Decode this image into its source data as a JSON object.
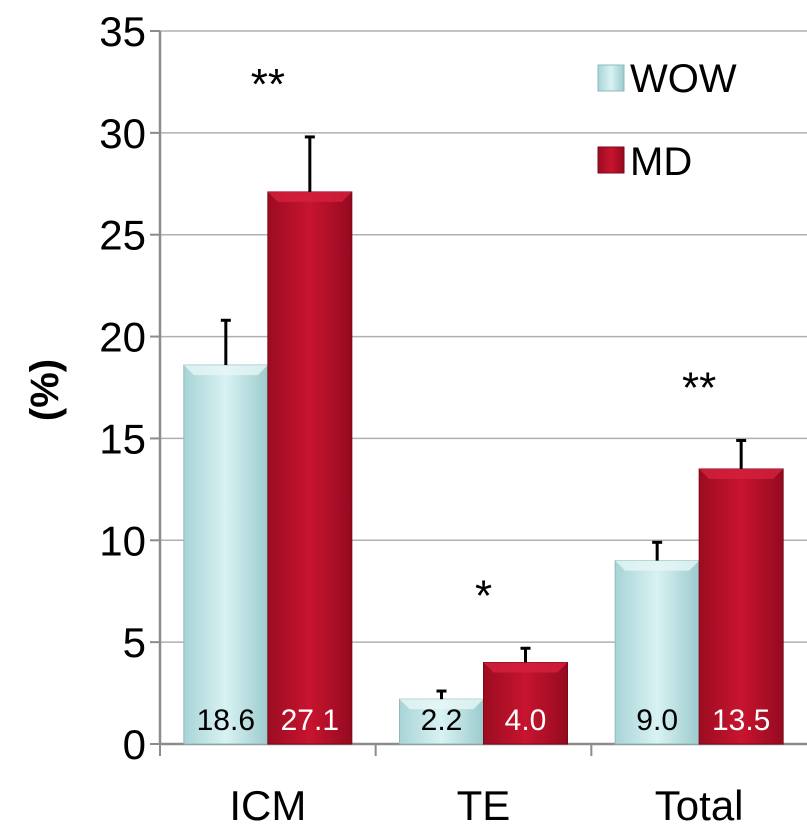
{
  "chart_data": {
    "type": "bar",
    "title": "",
    "xlabel": "",
    "ylabel": "(%)",
    "ylim": [
      0,
      35
    ],
    "yticks": [
      0,
      5,
      10,
      15,
      20,
      25,
      30,
      35
    ],
    "grid": true,
    "legend_position": "top-right",
    "categories": [
      "ICM",
      "TE",
      "Total"
    ],
    "series": [
      {
        "name": "WOW",
        "color": "#bfe6e7",
        "values": [
          18.6,
          2.2,
          9.0
        ],
        "labels": [
          "18.6",
          "2.2",
          "9.0"
        ],
        "error": [
          2.2,
          0.4,
          0.9
        ]
      },
      {
        "name": "MD",
        "color": "#b3102a",
        "values": [
          27.1,
          4.0,
          13.5
        ],
        "labels": [
          "27.1",
          "4.0",
          "13.5"
        ],
        "error": [
          2.7,
          0.7,
          1.4
        ]
      }
    ],
    "annotations": [
      {
        "text": "**",
        "category": "ICM"
      },
      {
        "text": "*",
        "category": "TE"
      },
      {
        "text": "**",
        "category": "Total"
      }
    ]
  }
}
